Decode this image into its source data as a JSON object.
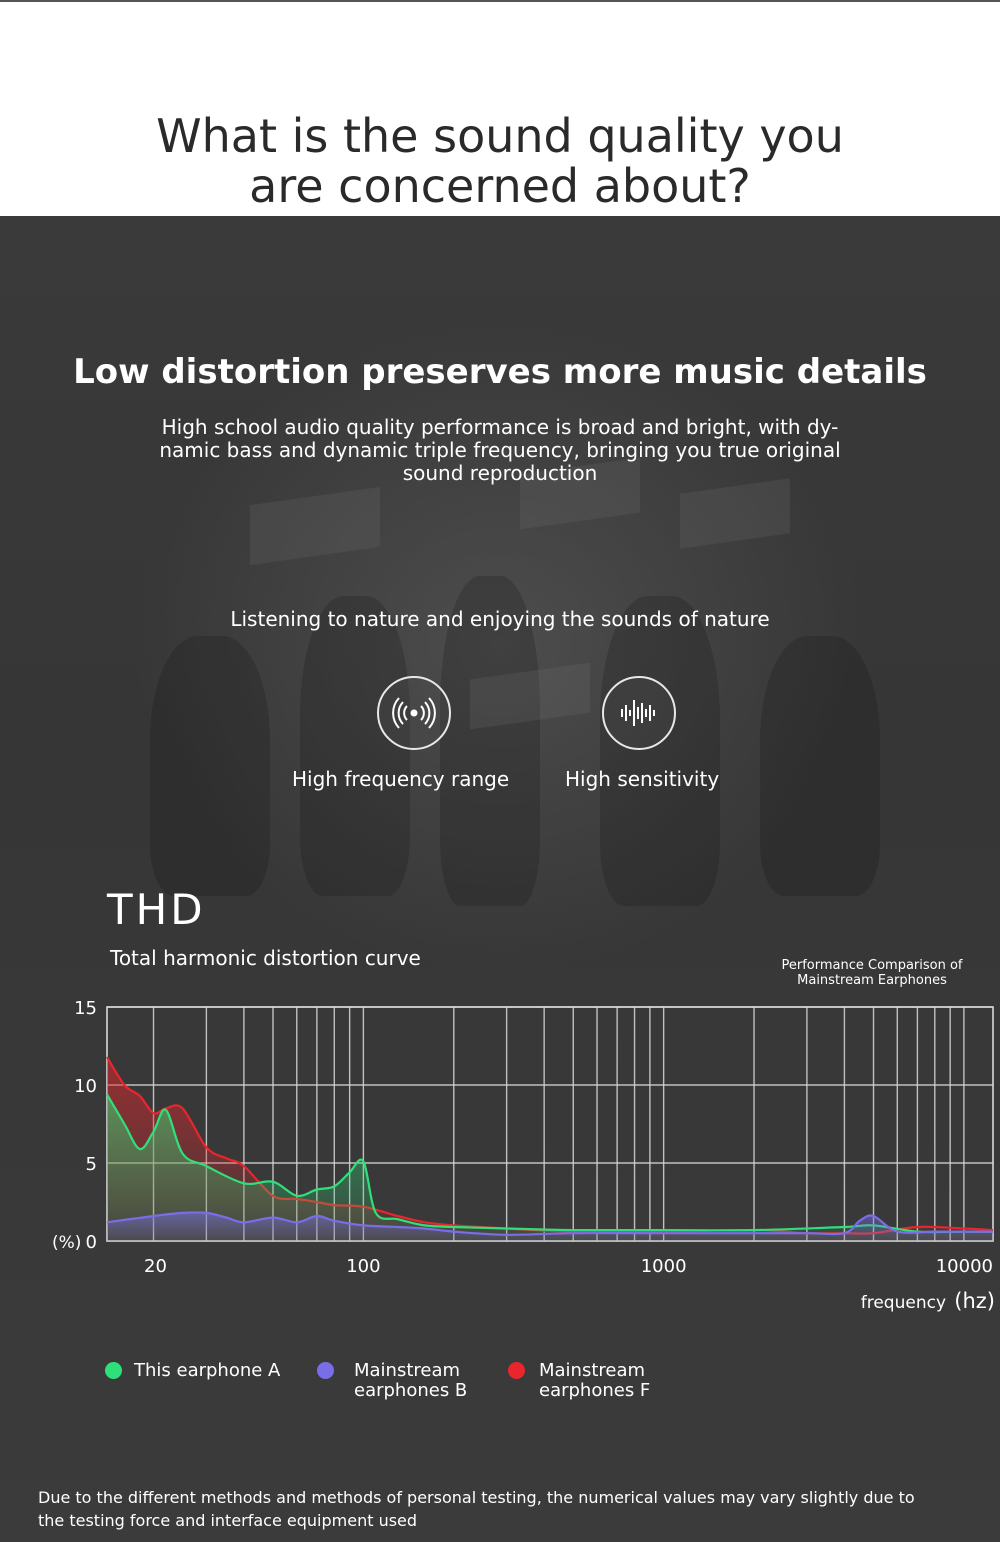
{
  "header": {
    "title_line1": "What is the sound quality you",
    "title_line2": "are concerned about?"
  },
  "section": {
    "heading": "Low distortion preserves more music details",
    "description": "High school audio quality performance is broad and bright, with dy- namic bass and dynamic triple frequency, bringing you true original sound reproduction",
    "nature_text": "Listening to nature and enjoying the sounds of nature"
  },
  "features": [
    {
      "label": "High frequency range",
      "icon": "wireless-signal-icon"
    },
    {
      "label": "High sensitivity",
      "icon": "sound-wave-icon"
    }
  ],
  "thd": {
    "title": "THD",
    "subtitle": "Total harmonic distortion curve",
    "comparison_note": "Performance Comparison of Mainstream Earphones"
  },
  "colors": {
    "series_a": "#2ee07a",
    "series_b": "#7a6ee8",
    "series_f": "#e8262c",
    "grid": "#d8d8d8"
  },
  "chart_data": {
    "type": "area",
    "xscale": "log",
    "xlim": [
      14,
      12500
    ],
    "ylim": [
      0,
      15
    ],
    "x_ticks": [
      "20",
      "100",
      "1000",
      "10000"
    ],
    "x_tick_values": [
      20,
      100,
      1000,
      10000
    ],
    "y_ticks": [
      "15",
      "10",
      "5",
      "0"
    ],
    "y_tick_values": [
      15,
      10,
      5,
      0
    ],
    "y_unit": "(%)",
    "xlabel": "frequency",
    "xunit": "(hz)",
    "grid": true,
    "legend_position": "bottom",
    "series": [
      {
        "name": "This earphone A",
        "x": [
          14,
          16,
          18,
          20,
          22,
          25,
          30,
          40,
          50,
          60,
          70,
          80,
          90,
          100,
          110,
          130,
          160,
          200,
          300,
          500,
          1000,
          2000,
          4000,
          5000,
          7000,
          10000,
          12500
        ],
        "y": [
          9.4,
          7.5,
          5.9,
          7.0,
          8.4,
          5.6,
          4.8,
          3.7,
          3.8,
          2.9,
          3.3,
          3.5,
          4.4,
          5.1,
          1.8,
          1.4,
          1.0,
          0.9,
          0.8,
          0.7,
          0.7,
          0.7,
          0.9,
          1.0,
          0.6,
          0.6,
          0.6
        ]
      },
      {
        "name": "Mainstream earphones B",
        "x": [
          14,
          20,
          25,
          30,
          35,
          40,
          50,
          60,
          70,
          80,
          100,
          130,
          160,
          200,
          300,
          500,
          1000,
          2000,
          3000,
          4000,
          4500,
          5000,
          6000,
          8000,
          10000,
          12500
        ],
        "y": [
          1.2,
          1.6,
          1.8,
          1.8,
          1.5,
          1.2,
          1.5,
          1.2,
          1.6,
          1.3,
          1.0,
          0.9,
          0.8,
          0.6,
          0.4,
          0.5,
          0.5,
          0.5,
          0.5,
          0.5,
          1.3,
          1.6,
          0.6,
          0.6,
          0.6,
          0.6
        ]
      },
      {
        "name": "Mainstream earphones F",
        "x": [
          14,
          16,
          18,
          20,
          22,
          25,
          30,
          35,
          40,
          50,
          60,
          70,
          80,
          100,
          130,
          160,
          200,
          300,
          500,
          1000,
          2000,
          3000,
          4000,
          5000,
          7000,
          10000,
          12500
        ],
        "y": [
          11.8,
          10.0,
          9.3,
          8.2,
          8.5,
          8.5,
          6.0,
          5.3,
          4.8,
          2.9,
          2.7,
          2.5,
          2.3,
          2.2,
          1.6,
          1.2,
          1.0,
          0.8,
          0.6,
          0.6,
          0.7,
          0.5,
          0.5,
          0.5,
          0.9,
          0.8,
          0.7
        ]
      }
    ]
  },
  "legend": [
    {
      "line1": "This earphone A",
      "line2": ""
    },
    {
      "line1": "Mainstream",
      "line2": "earphones B"
    },
    {
      "line1": "Mainstream",
      "line2": "earphones F"
    }
  ],
  "disclaimer": "Due to the different methods and methods of personal testing, the numerical values may vary slightly due to the testing force and interface equipment used"
}
